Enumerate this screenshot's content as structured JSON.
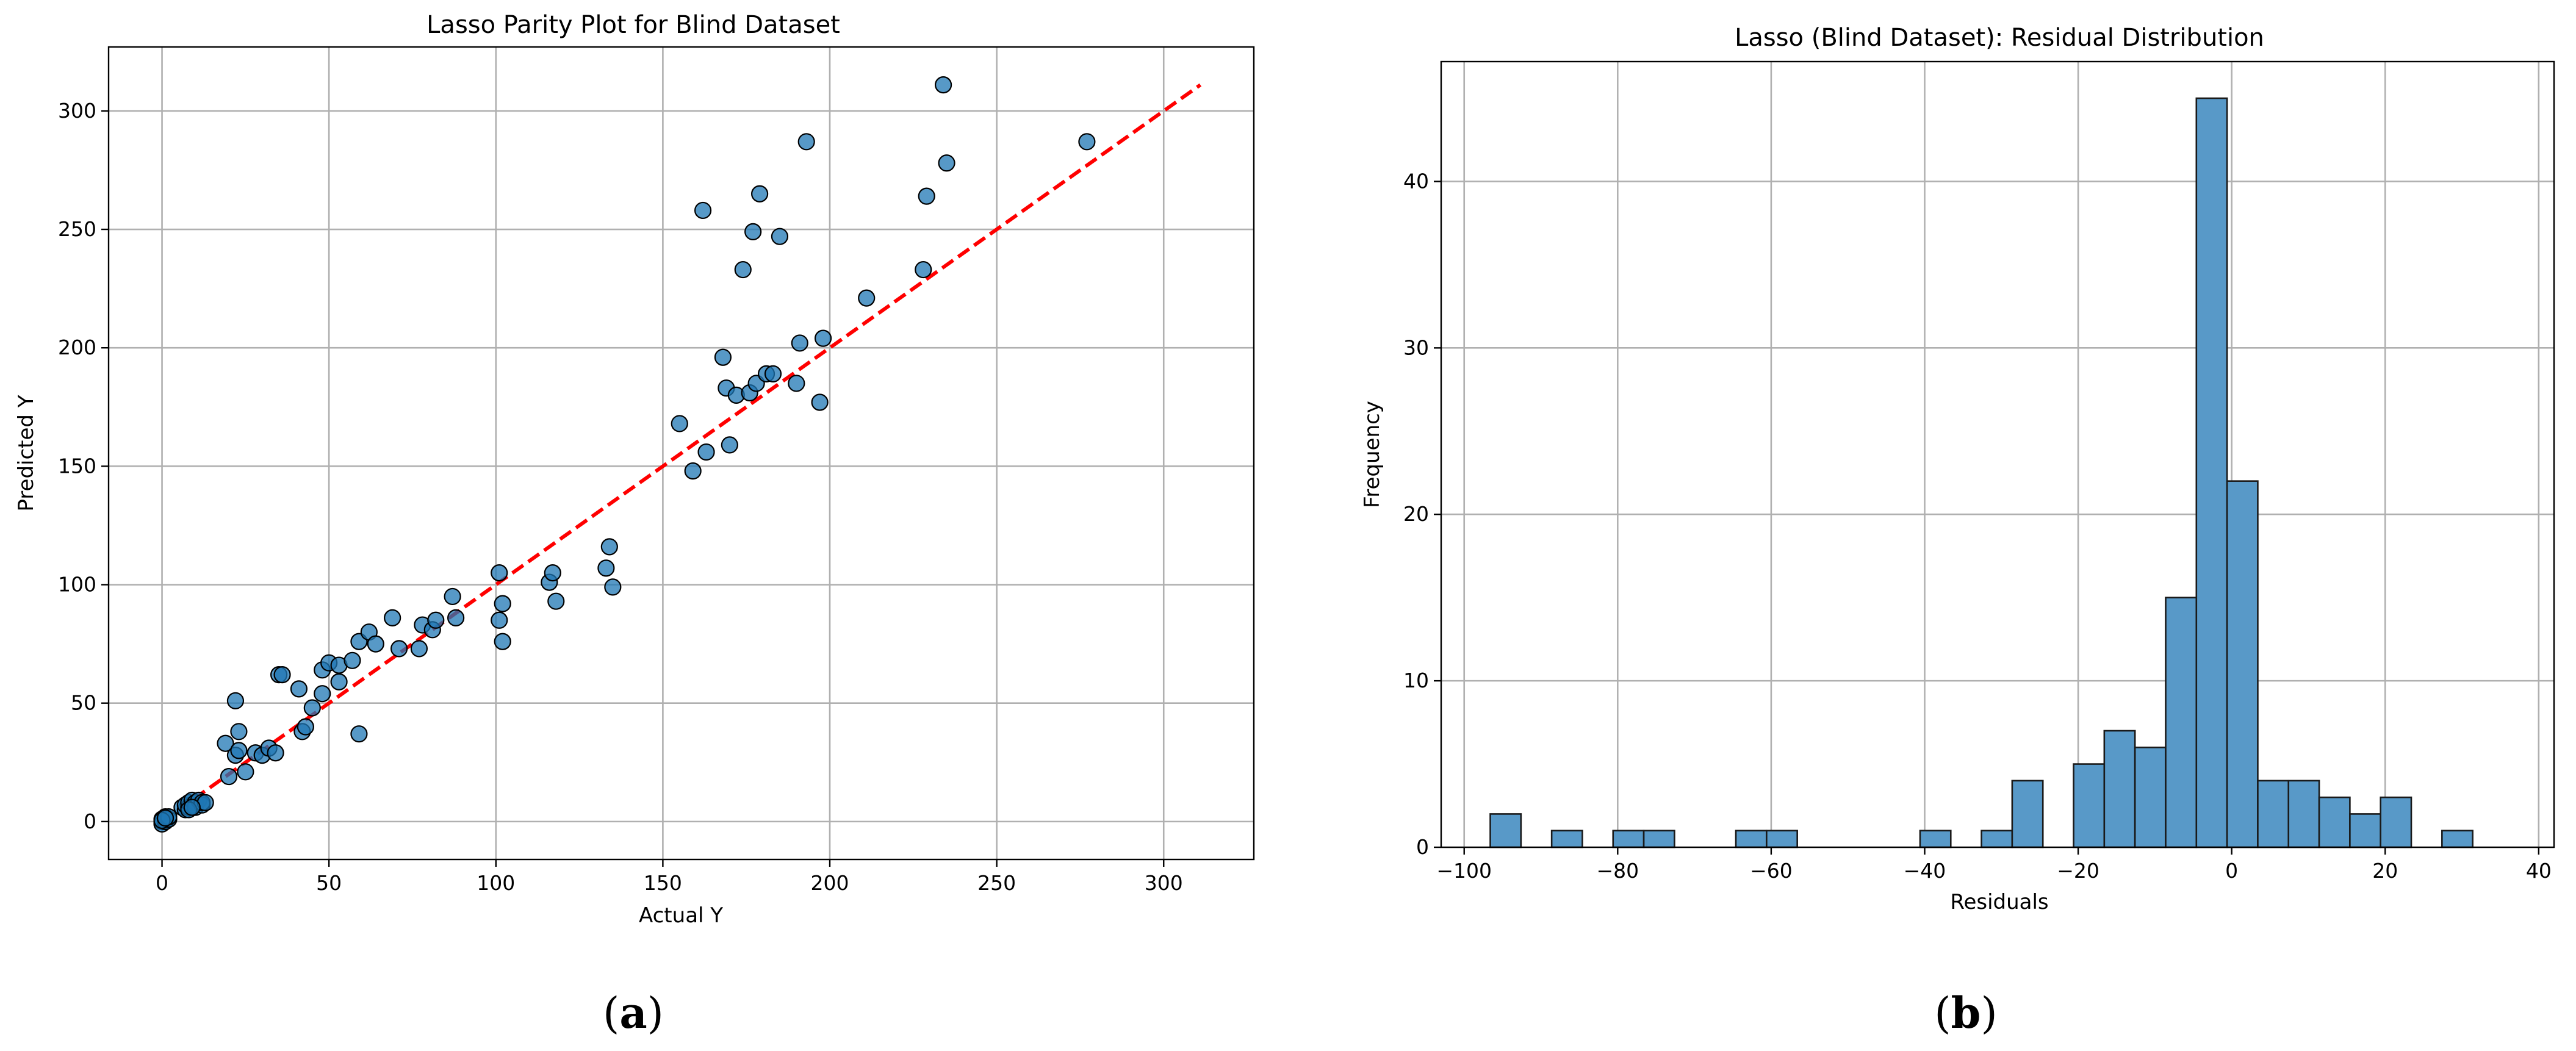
{
  "chart_data": [
    {
      "type": "scatter",
      "title": "Lasso Parity Plot for Blind Dataset",
      "xlabel": "Actual Y",
      "ylabel": "Predicted Y",
      "panel_label": "a",
      "xlim": [
        -16,
        327
      ],
      "ylim": [
        -16,
        327
      ],
      "xticks": [
        0,
        50,
        100,
        150,
        200,
        250,
        300
      ],
      "yticks": [
        0,
        50,
        100,
        150,
        200,
        250,
        300
      ],
      "grid": true,
      "marker_color": "#1f77b4",
      "parity_line": {
        "from": [
          0,
          0
        ],
        "to": [
          311,
          311
        ],
        "color": "#ff0000",
        "style": "dashed"
      },
      "points": [
        [
          0,
          0
        ],
        [
          0,
          1
        ],
        [
          0,
          -1
        ],
        [
          1,
          1
        ],
        [
          1,
          0
        ],
        [
          1,
          2
        ],
        [
          2,
          1
        ],
        [
          2,
          2
        ],
        [
          0,
          0.5
        ],
        [
          1,
          1.5
        ],
        [
          6,
          6
        ],
        [
          7,
          5
        ],
        [
          7,
          7
        ],
        [
          8,
          6
        ],
        [
          8,
          8
        ],
        [
          9,
          7
        ],
        [
          9,
          9
        ],
        [
          10,
          8
        ],
        [
          10,
          6
        ],
        [
          11,
          9
        ],
        [
          12,
          7
        ],
        [
          12,
          8
        ],
        [
          13,
          8
        ],
        [
          8,
          5
        ],
        [
          9,
          6
        ],
        [
          19,
          33
        ],
        [
          20,
          19
        ],
        [
          22,
          51
        ],
        [
          22,
          28
        ],
        [
          23,
          30
        ],
        [
          23,
          38
        ],
        [
          25,
          21
        ],
        [
          28,
          29
        ],
        [
          30,
          28
        ],
        [
          32,
          31
        ],
        [
          34,
          29
        ],
        [
          35,
          62
        ],
        [
          36,
          62
        ],
        [
          41,
          56
        ],
        [
          42,
          38
        ],
        [
          43,
          40
        ],
        [
          45,
          48
        ],
        [
          48,
          64
        ],
        [
          48,
          54
        ],
        [
          50,
          67
        ],
        [
          53,
          66
        ],
        [
          53,
          59
        ],
        [
          57,
          68
        ],
        [
          59,
          37
        ],
        [
          59,
          76
        ],
        [
          62,
          80
        ],
        [
          64,
          75
        ],
        [
          69,
          86
        ],
        [
          71,
          73
        ],
        [
          77,
          73
        ],
        [
          78,
          83
        ],
        [
          81,
          81
        ],
        [
          82,
          85
        ],
        [
          87,
          95
        ],
        [
          88,
          86
        ],
        [
          101,
          105
        ],
        [
          101,
          85
        ],
        [
          102,
          92
        ],
        [
          102,
          76
        ],
        [
          116,
          101
        ],
        [
          117,
          105
        ],
        [
          118,
          93
        ],
        [
          133,
          107
        ],
        [
          134,
          116
        ],
        [
          135,
          99
        ],
        [
          155,
          168
        ],
        [
          159,
          148
        ],
        [
          162,
          258
        ],
        [
          163,
          156
        ],
        [
          168,
          196
        ],
        [
          169,
          183
        ],
        [
          170,
          159
        ],
        [
          172,
          180
        ],
        [
          174,
          233
        ],
        [
          176,
          181
        ],
        [
          177,
          249
        ],
        [
          178,
          185
        ],
        [
          179,
          265
        ],
        [
          181,
          189
        ],
        [
          183,
          189
        ],
        [
          185,
          247
        ],
        [
          190,
          185
        ],
        [
          191,
          202
        ],
        [
          193,
          287
        ],
        [
          197,
          177
        ],
        [
          198,
          204
        ],
        [
          211,
          221
        ],
        [
          228,
          233
        ],
        [
          229,
          264
        ],
        [
          234,
          311
        ],
        [
          235,
          278
        ],
        [
          277,
          287
        ]
      ]
    },
    {
      "type": "bar",
      "title": "Lasso (Blind Dataset): Residual Distribution",
      "xlabel": "Residuals",
      "ylabel": "Frequency",
      "panel_label": "b",
      "xlim": [
        -103,
        42
      ],
      "ylim": [
        0,
        47.2
      ],
      "xticks": [
        -100,
        -80,
        -60,
        -40,
        -20,
        0,
        20,
        40
      ],
      "yticks": [
        0,
        10,
        20,
        30,
        40
      ],
      "grid": true,
      "bar_color": "#5899c8",
      "bin_start": -96.6,
      "bin_width": 4.0,
      "counts": [
        2,
        0,
        1,
        0,
        1,
        1,
        0,
        0,
        1,
        1,
        0,
        0,
        0,
        0,
        1,
        0,
        1,
        4,
        0,
        5,
        7,
        6,
        15,
        45,
        22,
        4,
        4,
        3,
        2,
        3,
        0,
        1
      ]
    }
  ]
}
